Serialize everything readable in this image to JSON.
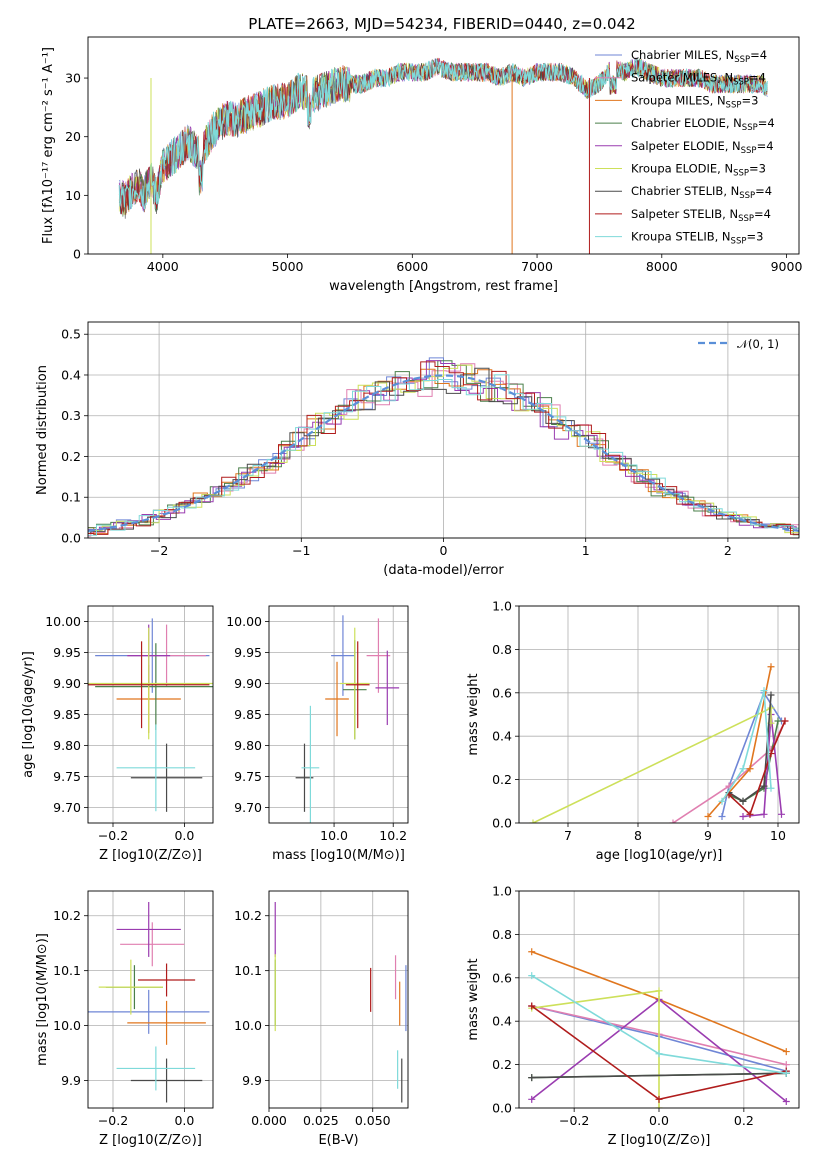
{
  "title": "PLATE=2663, MJD=54234, FIBERID=0440, z=0.042",
  "models": [
    {
      "name": "Chabrier MILES, N$_{SSP}$=4",
      "label": "Chabrier MILES, N",
      "sub": "SSP",
      "tail": "=4",
      "color": "#6f86d6"
    },
    {
      "name": "Salpeter MILES, N$_{SSP}$=4",
      "label": "Salpeter MILES, N",
      "sub": "SSP",
      "tail": "=4",
      "color": "#e07fb0"
    },
    {
      "name": "Kroupa MILES, N$_{SSP}$=3",
      "label": "Kroupa MILES, N",
      "sub": "SSP",
      "tail": "=3",
      "color": "#e0761e"
    },
    {
      "name": "Chabrier ELODIE, N$_{SSP}$=4",
      "label": "Chabrier ELODIE, N",
      "sub": "SSP",
      "tail": "=4",
      "color": "#4a7f4a"
    },
    {
      "name": "Salpeter ELODIE, N$_{SSP}$=4",
      "label": "Salpeter ELODIE, N",
      "sub": "SSP",
      "tail": "=4",
      "color": "#9a3cb0"
    },
    {
      "name": "Kroupa ELODIE, N$_{SSP}$=3",
      "label": "Kroupa ELODIE, N",
      "sub": "SSP",
      "tail": "=3",
      "color": "#cde05a"
    },
    {
      "name": "Chabrier STELIB, N$_{SSP}$=4",
      "label": "Chabrier STELIB, N",
      "sub": "SSP",
      "tail": "=4",
      "color": "#4a4a4a"
    },
    {
      "name": "Salpeter STELIB, N$_{SSP}$=4",
      "label": "Salpeter STELIB, N",
      "sub": "SSP",
      "tail": "=4",
      "color": "#b01c1c"
    },
    {
      "name": "Kroupa STELIB, N$_{SSP}$=3",
      "label": "Kroupa STELIB, N",
      "sub": "SSP",
      "tail": "=3",
      "color": "#7fdada"
    }
  ],
  "chart_data": [
    {
      "id": "spectrum",
      "type": "line",
      "xlabel": "wavelength [Angstrom, rest frame]",
      "ylabel": "Flux [fλ10⁻¹⁷ erg cm⁻² s⁻¹ A⁻¹]",
      "xlim": [
        3400,
        9100
      ],
      "ylim": [
        0,
        37
      ],
      "xticks": [
        4000,
        5000,
        6000,
        7000,
        8000,
        9000
      ],
      "yticks": [
        0,
        10,
        20,
        30
      ],
      "legend": "right",
      "grid": false,
      "x": [
        3650,
        3700,
        3750,
        3800,
        3850,
        3900,
        3950,
        4000,
        4100,
        4200,
        4300,
        4400,
        4500,
        4600,
        4700,
        4800,
        4900,
        5000,
        5100,
        5200,
        5300,
        5400,
        5500,
        5600,
        5700,
        5800,
        5900,
        6000,
        6100,
        6200,
        6300,
        6400,
        6500,
        6600,
        6700,
        6800,
        6900,
        7000,
        7100,
        7200,
        7300,
        7400,
        7500,
        7600,
        7700,
        7800,
        7900,
        8000,
        8100,
        8200,
        8300,
        8400,
        8500,
        8600,
        8700,
        8800,
        8850
      ],
      "y": [
        10,
        9,
        11,
        12,
        10,
        13,
        10,
        15,
        17,
        19,
        17,
        21,
        23,
        23,
        24,
        25,
        26,
        26,
        28,
        27,
        28,
        29,
        29,
        29,
        30,
        30,
        31,
        31,
        31,
        32,
        31,
        31,
        31,
        31,
        30,
        31,
        30,
        31,
        31,
        31,
        30,
        28,
        29,
        32,
        31,
        32,
        31,
        30,
        30,
        30,
        30,
        29,
        29,
        29,
        29,
        29,
        28
      ]
    },
    {
      "id": "residuals",
      "type": "histogram",
      "xlabel": "(data-model)/error",
      "ylabel": "Normed distribution",
      "xlim": [
        -2.5,
        2.5
      ],
      "ylim": [
        0,
        0.53
      ],
      "xticks": [
        -2,
        -1,
        0,
        1,
        2
      ],
      "yticks": [
        0.0,
        0.1,
        0.2,
        0.3,
        0.4,
        0.5
      ],
      "legend": "top-right",
      "legend_label": "𝒩(0, 1)",
      "grid": true
    },
    {
      "id": "age_vs_Z",
      "type": "scatter",
      "xlabel": "Z [log10(Z/Z⊙)]",
      "ylabel": "age  [log10(age/yr)]",
      "xlim": [
        -0.27,
        0.08
      ],
      "ylim": [
        9.675,
        10.025
      ],
      "xticks": [
        -0.2,
        0.0
      ],
      "yticks": [
        9.7,
        9.75,
        9.8,
        9.85,
        9.9,
        9.95,
        10.0
      ],
      "grid": true,
      "points": [
        {
          "x": -0.09,
          "y": 9.945,
          "xerr": 0.16,
          "yerr": 0.06
        },
        {
          "x": -0.05,
          "y": 9.945,
          "xerr": 0.11,
          "yerr": 0.05
        },
        {
          "x": -0.1,
          "y": 9.875,
          "xerr": 0.09,
          "yerr": 0.055
        },
        {
          "x": -0.08,
          "y": 9.895,
          "xerr": 0.17,
          "yerr": 0.07
        },
        {
          "x": -0.1,
          "y": 9.945,
          "xerr": 0.06,
          "yerr": 0.05
        },
        {
          "x": -0.1,
          "y": 9.9,
          "xerr": 0.18,
          "yerr": 0.09
        },
        {
          "x": -0.05,
          "y": 9.748,
          "xerr": 0.1,
          "yerr": 0.055
        },
        {
          "x": -0.12,
          "y": 9.898,
          "xerr": 0.19,
          "yerr": 0.07
        },
        {
          "x": -0.08,
          "y": 9.764,
          "xerr": 0.11,
          "yerr": 0.07
        }
      ]
    },
    {
      "id": "age_vs_mass",
      "type": "scatter",
      "xlabel": "mass [log10(M/M⊙)]",
      "ylabel": "",
      "xlim": [
        9.78,
        10.25
      ],
      "ylim": [
        9.675,
        10.025
      ],
      "xticks": [
        10.0,
        10.2
      ],
      "yticks": [
        9.7,
        9.75,
        9.8,
        9.85,
        9.9,
        9.95,
        10.0
      ],
      "grid": true,
      "points": [
        {
          "x": 10.03,
          "y": 9.945,
          "xerr": 0.04,
          "yerr": 0.065
        },
        {
          "x": 10.15,
          "y": 9.945,
          "xerr": 0.04,
          "yerr": 0.06
        },
        {
          "x": 10.01,
          "y": 9.875,
          "xerr": 0.04,
          "yerr": 0.06
        },
        {
          "x": 10.07,
          "y": 9.89,
          "xerr": 0.04,
          "yerr": 0.08
        },
        {
          "x": 10.18,
          "y": 9.893,
          "xerr": 0.04,
          "yerr": 0.06
        },
        {
          "x": 10.07,
          "y": 9.9,
          "xerr": 0.05,
          "yerr": 0.09
        },
        {
          "x": 9.9,
          "y": 9.748,
          "xerr": 0.03,
          "yerr": 0.055
        },
        {
          "x": 10.08,
          "y": 9.898,
          "xerr": 0.04,
          "yerr": 0.07
        },
        {
          "x": 9.92,
          "y": 9.764,
          "xerr": 0.03,
          "yerr": 0.1
        }
      ]
    },
    {
      "id": "weight_vs_age",
      "type": "line",
      "xlabel": "age  [log10(age/yr)]",
      "ylabel": "mass weight",
      "xlim": [
        6.3,
        10.3
      ],
      "ylim": [
        0,
        1
      ],
      "xticks": [
        7,
        8,
        9,
        10
      ],
      "yticks": [
        0.0,
        0.2,
        0.4,
        0.6,
        0.8,
        1.0
      ],
      "grid": true,
      "series": [
        {
          "x": [
            9.2,
            9.3,
            9.8,
            10.05
          ],
          "y": [
            0.03,
            0.17,
            0.6,
            0.47
          ]
        },
        {
          "x": [
            8.5,
            9.3,
            9.9,
            10.1
          ],
          "y": [
            0.0,
            0.17,
            0.34,
            0.47
          ]
        },
        {
          "x": [
            9.0,
            9.6,
            9.9
          ],
          "y": [
            0.03,
            0.25,
            0.72
          ]
        },
        {
          "x": [
            9.3,
            9.5,
            9.8,
            10.0
          ],
          "y": [
            0.13,
            0.1,
            0.16,
            0.47
          ]
        },
        {
          "x": [
            9.5,
            9.8,
            9.9,
            10.05
          ],
          "y": [
            0.03,
            0.04,
            0.5,
            0.04
          ]
        },
        {
          "x": [
            6.5,
            9.9,
            9.9
          ],
          "y": [
            0.0,
            0.53,
            0.46
          ]
        },
        {
          "x": [
            9.3,
            9.5,
            9.8,
            9.9
          ],
          "y": [
            0.14,
            0.1,
            0.17,
            0.59
          ]
        },
        {
          "x": [
            9.3,
            9.6,
            9.9,
            10.1
          ],
          "y": [
            0.13,
            0.04,
            0.32,
            0.47
          ]
        },
        {
          "x": [
            9.2,
            9.5,
            9.8,
            9.9
          ],
          "y": [
            0.1,
            0.25,
            0.61,
            0.16
          ]
        }
      ]
    },
    {
      "id": "mass_vs_Z",
      "type": "scatter",
      "xlabel": "Z [log10(Z/Z⊙)]",
      "ylabel": "mass [log10(M/M⊙)]",
      "xlim": [
        -0.27,
        0.08
      ],
      "ylim": [
        9.85,
        10.245
      ],
      "xticks": [
        -0.2,
        0.0
      ],
      "yticks": [
        9.9,
        10.0,
        10.1,
        10.2
      ],
      "grid": true,
      "points": [
        {
          "x": -0.1,
          "y": 10.025,
          "xerr": 0.17,
          "yerr": 0.04
        },
        {
          "x": -0.09,
          "y": 10.148,
          "xerr": 0.09,
          "yerr": 0.04
        },
        {
          "x": -0.05,
          "y": 10.005,
          "xerr": 0.11,
          "yerr": 0.04
        },
        {
          "x": -0.14,
          "y": 10.07,
          "xerr": 0.08,
          "yerr": 0.04
        },
        {
          "x": -0.1,
          "y": 10.175,
          "xerr": 0.09,
          "yerr": 0.05
        },
        {
          "x": -0.15,
          "y": 10.07,
          "xerr": 0.09,
          "yerr": 0.05
        },
        {
          "x": -0.05,
          "y": 9.9,
          "xerr": 0.1,
          "yerr": 0.04
        },
        {
          "x": -0.05,
          "y": 10.083,
          "xerr": 0.08,
          "yerr": 0.03
        },
        {
          "x": -0.08,
          "y": 9.922,
          "xerr": 0.11,
          "yerr": 0.04
        }
      ]
    },
    {
      "id": "mass_vs_ebv",
      "type": "scatter",
      "xlabel": "E(B-V)",
      "ylabel": "",
      "xlim": [
        0.0,
        0.067
      ],
      "ylim": [
        9.85,
        10.245
      ],
      "xticks": [
        0.0,
        0.025,
        0.05
      ],
      "xticklabels": [
        "0.000",
        "0.025",
        "0.050"
      ],
      "yticks": [
        9.9,
        10.0,
        10.1,
        10.2
      ],
      "grid": true,
      "points": [
        {
          "x": 0.066,
          "y": 10.05,
          "xerr": 0,
          "yerr": 0.06
        },
        {
          "x": 0.061,
          "y": 10.088,
          "xerr": 0,
          "yerr": 0.04
        },
        {
          "x": 0.063,
          "y": 10.04,
          "xerr": 0,
          "yerr": 0.04
        },
        {
          "x": 0.003,
          "y": 10.06,
          "xerr": 0,
          "yerr": 0.06
        },
        {
          "x": 0.003,
          "y": 10.175,
          "xerr": 0,
          "yerr": 0.05
        },
        {
          "x": 0.003,
          "y": 10.06,
          "xerr": 0,
          "yerr": 0.07
        },
        {
          "x": 0.064,
          "y": 9.9,
          "xerr": 0,
          "yerr": 0.04
        },
        {
          "x": 0.049,
          "y": 10.065,
          "xerr": 0,
          "yerr": 0.04
        },
        {
          "x": 0.062,
          "y": 9.92,
          "xerr": 0,
          "yerr": 0.035
        }
      ]
    },
    {
      "id": "weight_vs_Z",
      "type": "line",
      "xlabel": "Z [log10(Z/Z⊙)]",
      "ylabel": "mass weight",
      "xlim": [
        -0.33,
        0.33
      ],
      "ylim": [
        0,
        1
      ],
      "xticks": [
        -0.2,
        0.0,
        0.2
      ],
      "yticks": [
        0.0,
        0.2,
        0.4,
        0.6,
        0.8,
        1.0
      ],
      "grid": true,
      "series": [
        {
          "x": [
            -0.3,
            0.0,
            0.3
          ],
          "y": [
            0.47,
            0.33,
            0.17
          ]
        },
        {
          "x": [
            -0.3,
            0.0,
            0.3
          ],
          "y": [
            0.47,
            0.34,
            0.2
          ]
        },
        {
          "x": [
            -0.3,
            0.0,
            0.3
          ],
          "y": [
            0.72,
            0.5,
            0.26
          ]
        },
        {
          "x": [
            -0.3,
            0.3
          ],
          "y": [
            0.14,
            0.16
          ]
        },
        {
          "x": [
            -0.3,
            0.0,
            0.3
          ],
          "y": [
            0.04,
            0.5,
            0.03
          ]
        },
        {
          "x": [
            -0.3,
            0.0,
            0.0
          ],
          "y": [
            0.46,
            0.54,
            0.0
          ]
        },
        {
          "x": [
            -0.3,
            0.3
          ],
          "y": [
            0.14,
            0.16
          ]
        },
        {
          "x": [
            -0.3,
            0.0,
            0.3
          ],
          "y": [
            0.47,
            0.04,
            0.17
          ]
        },
        {
          "x": [
            -0.3,
            0.0,
            0.3
          ],
          "y": [
            0.61,
            0.25,
            0.16
          ]
        }
      ]
    }
  ]
}
